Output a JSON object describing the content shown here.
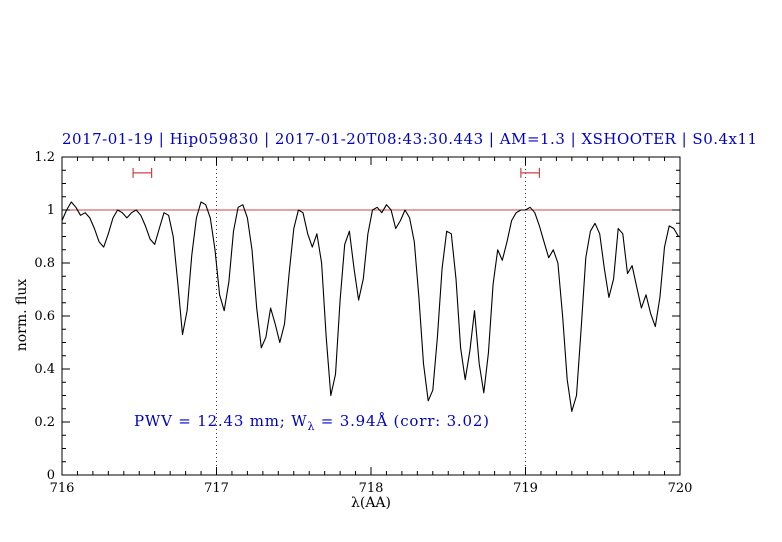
{
  "title": "2017-01-19 | Hip059830 | 2017-01-20T08:43:30.443 | AM=1.3 | XSHOOTER | S0.4x11",
  "annotation": {
    "prefix": "PWV = 12.43 mm; W",
    "sub": "λ",
    "suffix": " = 3.94Å (corr: 3.02)"
  },
  "colors": {
    "title": "#0000cc",
    "annotation": "#0000cc",
    "continuum": "#cc4444",
    "marker": "#cc4444",
    "spectrum": "#000000",
    "dotted": "#333333"
  },
  "chart_data": {
    "type": "line",
    "title": "2017-01-19 | Hip059830 | 2017-01-20T08:43:30.443 | AM=1.3 | XSHOOTER | S0.4x11",
    "xlabel": "λ(AA)",
    "ylabel": "norm. flux",
    "xlim": [
      716,
      720
    ],
    "ylim": [
      0,
      1.2
    ],
    "xticks": [
      716,
      717,
      718,
      719,
      720
    ],
    "xtick_labels": [
      "716",
      "717",
      "718",
      "719",
      "720"
    ],
    "yticks": [
      0,
      0.2,
      0.4,
      0.6,
      0.8,
      1,
      1.2
    ],
    "ytick_labels": [
      "0",
      "0.2",
      "0.4",
      "0.6",
      "0.8",
      "1",
      "1.2"
    ],
    "minor_x_step": 0.1,
    "minor_y_step": 0.05,
    "grid": false,
    "continuum_y": 1.0,
    "dotted_vlines": [
      717,
      719
    ],
    "range_markers": [
      {
        "x1": 716.46,
        "x2": 716.58,
        "y": 1.14
      },
      {
        "x1": 718.97,
        "x2": 719.09,
        "y": 1.14
      }
    ],
    "annotation_text": "PWV = 12.43 mm; W_λ = 3.94Å (corr: 3.02)",
    "spectrum": [
      [
        716.0,
        0.96
      ],
      [
        716.03,
        1.0
      ],
      [
        716.06,
        1.03
      ],
      [
        716.09,
        1.01
      ],
      [
        716.12,
        0.98
      ],
      [
        716.15,
        0.99
      ],
      [
        716.18,
        0.97
      ],
      [
        716.21,
        0.93
      ],
      [
        716.24,
        0.88
      ],
      [
        716.27,
        0.86
      ],
      [
        716.3,
        0.91
      ],
      [
        716.33,
        0.97
      ],
      [
        716.36,
        1.0
      ],
      [
        716.39,
        0.99
      ],
      [
        716.42,
        0.97
      ],
      [
        716.45,
        0.99
      ],
      [
        716.48,
        1.0
      ],
      [
        716.51,
        0.98
      ],
      [
        716.54,
        0.94
      ],
      [
        716.57,
        0.89
      ],
      [
        716.6,
        0.87
      ],
      [
        716.63,
        0.93
      ],
      [
        716.66,
        0.99
      ],
      [
        716.69,
        0.98
      ],
      [
        716.72,
        0.9
      ],
      [
        716.75,
        0.72
      ],
      [
        716.78,
        0.53
      ],
      [
        716.81,
        0.62
      ],
      [
        716.84,
        0.83
      ],
      [
        716.87,
        0.97
      ],
      [
        716.9,
        1.03
      ],
      [
        716.93,
        1.02
      ],
      [
        716.96,
        0.97
      ],
      [
        716.99,
        0.85
      ],
      [
        717.02,
        0.68
      ],
      [
        717.05,
        0.62
      ],
      [
        717.08,
        0.73
      ],
      [
        717.11,
        0.92
      ],
      [
        717.14,
        1.01
      ],
      [
        717.17,
        1.02
      ],
      [
        717.2,
        0.97
      ],
      [
        717.23,
        0.85
      ],
      [
        717.26,
        0.63
      ],
      [
        717.29,
        0.48
      ],
      [
        717.32,
        0.52
      ],
      [
        717.35,
        0.63
      ],
      [
        717.38,
        0.57
      ],
      [
        717.41,
        0.5
      ],
      [
        717.44,
        0.57
      ],
      [
        717.47,
        0.76
      ],
      [
        717.5,
        0.93
      ],
      [
        717.53,
        1.0
      ],
      [
        717.56,
        0.99
      ],
      [
        717.59,
        0.91
      ],
      [
        717.62,
        0.86
      ],
      [
        717.65,
        0.91
      ],
      [
        717.68,
        0.8
      ],
      [
        717.71,
        0.52
      ],
      [
        717.74,
        0.3
      ],
      [
        717.77,
        0.38
      ],
      [
        717.8,
        0.66
      ],
      [
        717.83,
        0.87
      ],
      [
        717.86,
        0.92
      ],
      [
        717.89,
        0.78
      ],
      [
        717.92,
        0.66
      ],
      [
        717.95,
        0.74
      ],
      [
        717.98,
        0.91
      ],
      [
        718.01,
        1.0
      ],
      [
        718.04,
        1.01
      ],
      [
        718.07,
        0.99
      ],
      [
        718.1,
        1.02
      ],
      [
        718.13,
        1.0
      ],
      [
        718.16,
        0.93
      ],
      [
        718.19,
        0.96
      ],
      [
        718.22,
        1.0
      ],
      [
        718.25,
        0.97
      ],
      [
        718.28,
        0.88
      ],
      [
        718.31,
        0.67
      ],
      [
        718.34,
        0.42
      ],
      [
        718.37,
        0.28
      ],
      [
        718.4,
        0.32
      ],
      [
        718.43,
        0.52
      ],
      [
        718.46,
        0.78
      ],
      [
        718.49,
        0.92
      ],
      [
        718.52,
        0.91
      ],
      [
        718.55,
        0.74
      ],
      [
        718.58,
        0.48
      ],
      [
        718.61,
        0.36
      ],
      [
        718.64,
        0.47
      ],
      [
        718.67,
        0.62
      ],
      [
        718.7,
        0.42
      ],
      [
        718.73,
        0.31
      ],
      [
        718.76,
        0.46
      ],
      [
        718.79,
        0.72
      ],
      [
        718.82,
        0.85
      ],
      [
        718.85,
        0.81
      ],
      [
        718.88,
        0.88
      ],
      [
        718.91,
        0.96
      ],
      [
        718.94,
        0.99
      ],
      [
        718.97,
        1.0
      ],
      [
        719.0,
        1.0
      ],
      [
        719.03,
        1.01
      ],
      [
        719.06,
        0.99
      ],
      [
        719.09,
        0.94
      ],
      [
        719.12,
        0.88
      ],
      [
        719.15,
        0.82
      ],
      [
        719.18,
        0.85
      ],
      [
        719.21,
        0.8
      ],
      [
        719.24,
        0.6
      ],
      [
        719.27,
        0.36
      ],
      [
        719.3,
        0.24
      ],
      [
        719.33,
        0.3
      ],
      [
        719.36,
        0.55
      ],
      [
        719.39,
        0.82
      ],
      [
        719.42,
        0.92
      ],
      [
        719.45,
        0.95
      ],
      [
        719.48,
        0.91
      ],
      [
        719.51,
        0.78
      ],
      [
        719.54,
        0.67
      ],
      [
        719.57,
        0.74
      ],
      [
        719.6,
        0.93
      ],
      [
        719.63,
        0.91
      ],
      [
        719.66,
        0.76
      ],
      [
        719.69,
        0.79
      ],
      [
        719.72,
        0.71
      ],
      [
        719.75,
        0.63
      ],
      [
        719.78,
        0.68
      ],
      [
        719.81,
        0.61
      ],
      [
        719.84,
        0.56
      ],
      [
        719.87,
        0.67
      ],
      [
        719.9,
        0.86
      ],
      [
        719.93,
        0.94
      ],
      [
        719.96,
        0.93
      ],
      [
        719.99,
        0.9
      ]
    ]
  }
}
